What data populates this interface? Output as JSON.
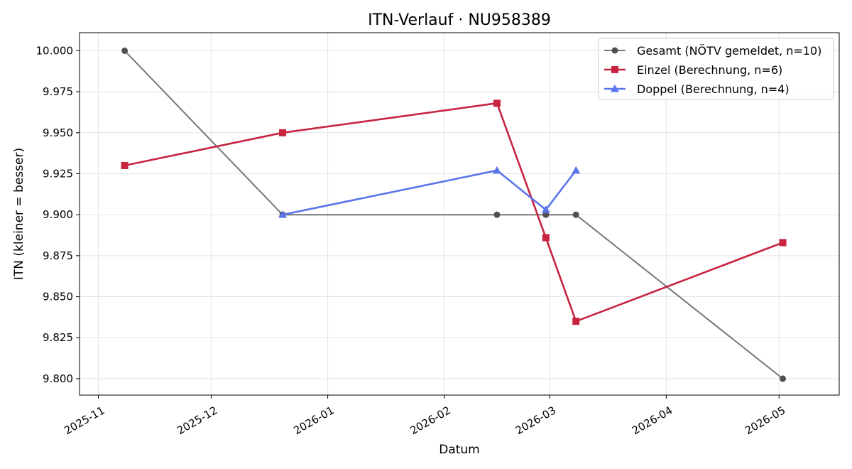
{
  "chart_data": {
    "type": "line",
    "title": "ITN-Verlauf · NU958389",
    "xlabel": "Datum",
    "ylabel": "ITN  (kleiner = besser)",
    "ylim": [
      9.79,
      10.011
    ],
    "xlim": [
      "2025-10-27",
      "2026-05-17"
    ],
    "grid": true,
    "legend_position": "top-right",
    "x_ticks": [
      "2025-11",
      "2025-12",
      "2026-01",
      "2026-02",
      "2026-03",
      "2026-04",
      "2026-05"
    ],
    "y_ticks": [
      "9.800",
      "9.825",
      "9.850",
      "9.875",
      "9.900",
      "9.925",
      "9.950",
      "9.975",
      "10.000"
    ],
    "series": [
      {
        "name": "Gesamt (NÖTV gemeldet, n=10)",
        "color": "#777777",
        "marker": "circle",
        "marker_color": "#505050",
        "points": [
          {
            "x": "2025-11-08",
            "y": 10.0
          },
          {
            "x": "2025-12-20",
            "y": 9.9
          },
          {
            "x": "2026-02-15",
            "y": 9.9
          },
          {
            "x": "2026-02-28",
            "y": 9.9
          },
          {
            "x": "2026-03-08",
            "y": 9.9
          },
          {
            "x": "2026-05-02",
            "y": 9.8
          }
        ]
      },
      {
        "name": "Einzel (Berechnung, n=6)",
        "color": "#c8243f",
        "marker": "square",
        "marker_color": "#c8243f",
        "points": [
          {
            "x": "2025-11-08",
            "y": 9.93
          },
          {
            "x": "2025-12-20",
            "y": 9.95
          },
          {
            "x": "2026-02-15",
            "y": 9.968
          },
          {
            "x": "2026-02-28",
            "y": 9.886
          },
          {
            "x": "2026-03-08",
            "y": 9.835
          },
          {
            "x": "2026-05-02",
            "y": 9.883
          }
        ]
      },
      {
        "name": "Doppel (Berechnung, n=4)",
        "color": "#5a76ea",
        "marker": "triangle",
        "marker_color": "#5a76ea",
        "points": [
          {
            "x": "2025-12-20",
            "y": 9.9
          },
          {
            "x": "2026-02-15",
            "y": 9.927
          },
          {
            "x": "2026-02-28",
            "y": 9.903
          },
          {
            "x": "2026-03-08",
            "y": 9.927
          }
        ]
      }
    ]
  }
}
